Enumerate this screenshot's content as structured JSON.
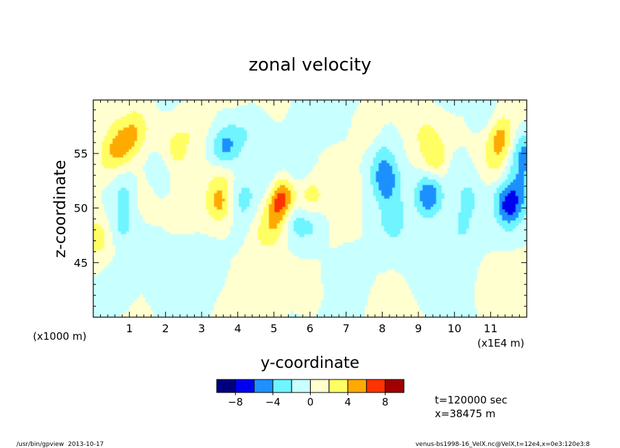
{
  "chart_data": {
    "type": "heatmap",
    "title": "zonal velocity",
    "xlabel": "y-coordinate",
    "ylabel": "z-coordinate",
    "x_unit": "(x1E4 m)",
    "y_unit": "(x1000 m)",
    "xlim": [
      0,
      12
    ],
    "ylim": [
      40,
      59.9
    ],
    "x_ticks": [
      1,
      2,
      3,
      4,
      5,
      6,
      7,
      8,
      9,
      10,
      11
    ],
    "y_ticks": [
      45,
      50,
      55
    ],
    "colorbar": {
      "levels": [
        -10,
        -8,
        -6,
        -4,
        -2,
        0,
        2,
        4,
        6,
        8,
        10
      ],
      "tick_values": [
        -8,
        -4,
        0,
        4,
        8
      ],
      "tick_labels": [
        "−8",
        "−4",
        "0",
        "4",
        "8"
      ],
      "colors": [
        "#00007f",
        "#0000f0",
        "#1e90ff",
        "#6ef5ff",
        "#c8ffff",
        "#ffffd0",
        "#ffff64",
        "#ffaa00",
        "#ff3300",
        "#a00000"
      ]
    },
    "blobs": [
      {
        "x": 0.8,
        "z": 55.8,
        "v": 4.5
      },
      {
        "x": 1.2,
        "z": 57.3,
        "v": 3.2
      },
      {
        "x": 0.4,
        "z": 54.6,
        "v": 2.6
      },
      {
        "x": 1.8,
        "z": 53.2,
        "v": -1.8
      },
      {
        "x": 0.9,
        "z": 51.5,
        "v": -2.5
      },
      {
        "x": 0.8,
        "z": 48.4,
        "v": -2.2
      },
      {
        "x": 0.15,
        "z": 47.3,
        "v": 3.0
      },
      {
        "x": 1.3,
        "z": 51.3,
        "v": 1.8
      },
      {
        "x": 2.3,
        "z": 55.5,
        "v": 2.4
      },
      {
        "x": 2.8,
        "z": 57.8,
        "v": 1.6
      },
      {
        "x": 3.5,
        "z": 50.5,
        "v": 4.8
      },
      {
        "x": 3.6,
        "z": 53.5,
        "v": 2.8
      },
      {
        "x": 3.6,
        "z": 55.2,
        "v": -4.8
      },
      {
        "x": 3.9,
        "z": 56.5,
        "v": -1.8
      },
      {
        "x": 4.1,
        "z": 50.7,
        "v": -2.2
      },
      {
        "x": 4.7,
        "z": 47.5,
        "v": 1.8
      },
      {
        "x": 5.2,
        "z": 51.0,
        "v": 7.5
      },
      {
        "x": 5.0,
        "z": 48.8,
        "v": 3.2
      },
      {
        "x": 4.9,
        "z": 52.5,
        "v": -2.2
      },
      {
        "x": 5.6,
        "z": 48.8,
        "v": -3.2
      },
      {
        "x": 6.1,
        "z": 48.5,
        "v": -2.5
      },
      {
        "x": 6.0,
        "z": 51.0,
        "v": 3.0
      },
      {
        "x": 5.7,
        "z": 53.5,
        "v": -2.0
      },
      {
        "x": 8.1,
        "z": 52.5,
        "v": -5.0
      },
      {
        "x": 8.3,
        "z": 49.0,
        "v": -3.2
      },
      {
        "x": 8.0,
        "z": 54.8,
        "v": -2.0
      },
      {
        "x": 7.6,
        "z": 57.0,
        "v": 1.4
      },
      {
        "x": 9.3,
        "z": 51.2,
        "v": -6.2
      },
      {
        "x": 9.5,
        "z": 54.5,
        "v": 3.2
      },
      {
        "x": 9.2,
        "z": 56.8,
        "v": 2.2
      },
      {
        "x": 10.4,
        "z": 51.0,
        "v": -2.3
      },
      {
        "x": 10.2,
        "z": 48.2,
        "v": -2.1
      },
      {
        "x": 10.0,
        "z": 53.5,
        "v": -1.8
      },
      {
        "x": 11.3,
        "z": 56.5,
        "v": 4.8
      },
      {
        "x": 11.1,
        "z": 54.2,
        "v": 2.4
      },
      {
        "x": 11.5,
        "z": 50.2,
        "v": -6.2
      },
      {
        "x": 11.9,
        "z": 55.0,
        "v": -4.2
      },
      {
        "x": 11.8,
        "z": 52.0,
        "v": -2.2
      },
      {
        "x": 10.9,
        "z": 58.5,
        "v": -1.6
      },
      {
        "x": 7.0,
        "z": 44.0,
        "v": -1.6
      },
      {
        "x": 3.2,
        "z": 44.5,
        "v": -1.5
      },
      {
        "x": 9.2,
        "z": 44.0,
        "v": -1.6
      },
      {
        "x": 6.0,
        "z": 41.8,
        "v": 1.4
      },
      {
        "x": 0.6,
        "z": 42.5,
        "v": -1.5
      },
      {
        "x": 11.6,
        "z": 42.2,
        "v": 1.3
      },
      {
        "x": 2.6,
        "z": 41.2,
        "v": -1.3
      },
      {
        "x": 8.4,
        "z": 41.0,
        "v": 1.2
      },
      {
        "x": 6.9,
        "z": 53.0,
        "v": 1.2
      },
      {
        "x": 4.4,
        "z": 57.5,
        "v": -1.6
      },
      {
        "x": 0.3,
        "z": 58.8,
        "v": 1.3
      }
    ]
  },
  "annotations": {
    "time": "t=120000 sec",
    "position": "x=38475 m",
    "program": "/usr/bin/gpview  2013-10-17",
    "source": "venus-bs1998-16_VelX.nc@VelX,t=12e4,x=0e3:120e3:8"
  }
}
